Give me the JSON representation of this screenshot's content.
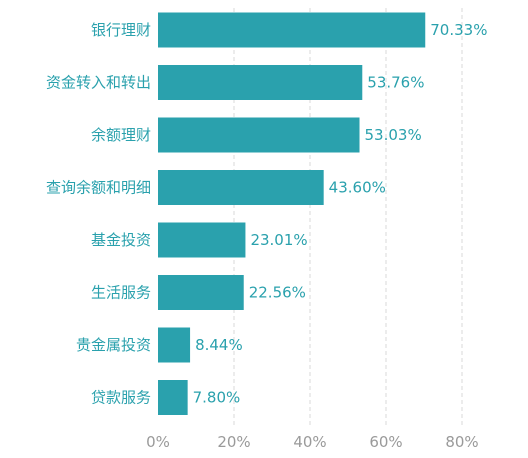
{
  "chart_data": {
    "type": "bar",
    "orientation": "horizontal",
    "categories": [
      "银行理财",
      "资金转入和转出",
      "余额理财",
      "查询余额和明细",
      "基金投资",
      "生活服务",
      "贵金属投资",
      "贷款服务"
    ],
    "values": [
      70.33,
      53.76,
      53.03,
      43.6,
      23.01,
      22.56,
      8.44,
      7.8
    ],
    "value_labels": [
      "70.33%",
      "53.76%",
      "53.03%",
      "43.60%",
      "23.01%",
      "22.56%",
      "8.44%",
      "7.80%"
    ],
    "x_ticks": [
      0,
      20,
      40,
      60,
      80
    ],
    "x_tick_labels": [
      "0%",
      "20%",
      "40%",
      "60%",
      "80%"
    ],
    "xlim": [
      0,
      80
    ],
    "grid": "vertical-dashed",
    "bar_color": "#2aa1ad",
    "label_color": "#2aa1ad",
    "tick_color": "#9a9a9a",
    "grid_color": "#d9d9d9"
  }
}
